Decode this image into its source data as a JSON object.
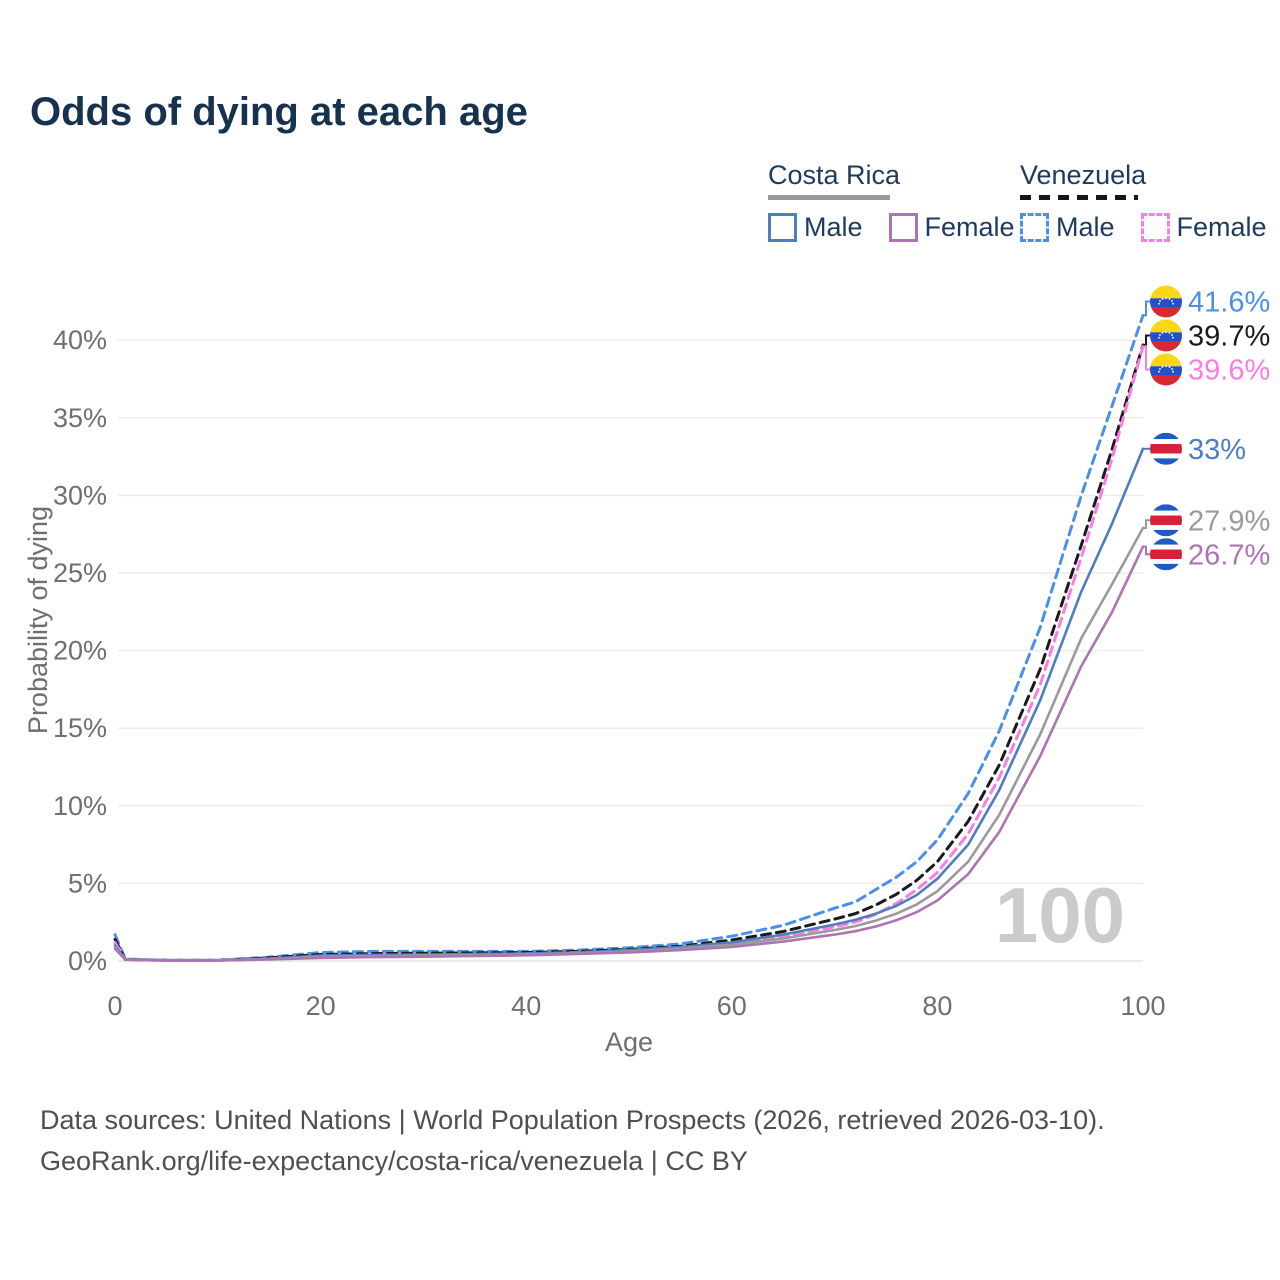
{
  "title": "Odds of dying at each age",
  "legend": {
    "groups": [
      {
        "country": "Costa Rica",
        "line_style": "solid",
        "underline_color": "#9a9a9a",
        "items": [
          {
            "label": "Male",
            "color": "#4d7ebf",
            "dashed": false
          },
          {
            "label": "Female",
            "color": "#ac74b3",
            "dashed": false
          }
        ]
      },
      {
        "country": "Venezuela",
        "line_style": "dashed",
        "underline_color": "#161616",
        "items": [
          {
            "label": "Male",
            "color": "#4a90e8",
            "dashed": true
          },
          {
            "label": "Female",
            "color": "#fb7ce4",
            "dashed": true
          }
        ]
      }
    ]
  },
  "chart_data": {
    "type": "line",
    "title": "Odds of dying at each age",
    "xlabel": "Age",
    "ylabel": "Probability of dying",
    "xlim": [
      0,
      100
    ],
    "ylim": [
      0,
      43
    ],
    "grid": "horizontal",
    "legend_position": "top-right",
    "watermark": "100",
    "x_ticks": [
      {
        "v": 0,
        "label": "0"
      },
      {
        "v": 20,
        "label": "20"
      },
      {
        "v": 40,
        "label": "40"
      },
      {
        "v": 60,
        "label": "60"
      },
      {
        "v": 80,
        "label": "80"
      },
      {
        "v": 100,
        "label": "100"
      }
    ],
    "y_ticks": [
      {
        "v": 0,
        "label": "0%"
      },
      {
        "v": 5,
        "label": "5%"
      },
      {
        "v": 10,
        "label": "10%"
      },
      {
        "v": 15,
        "label": "15%"
      },
      {
        "v": 20,
        "label": "20%"
      },
      {
        "v": 25,
        "label": "25%"
      },
      {
        "v": 30,
        "label": "30%"
      },
      {
        "v": 35,
        "label": "35%"
      },
      {
        "v": 40,
        "label": "40%"
      }
    ],
    "x": [
      0,
      1,
      5,
      10,
      15,
      20,
      25,
      30,
      35,
      40,
      45,
      50,
      55,
      60,
      65,
      70,
      72,
      74,
      76,
      78,
      80,
      83,
      86,
      90,
      94,
      97,
      100
    ],
    "series": [
      {
        "name": "Venezuela Male",
        "country": "venezuela",
        "color": "#4a90e8",
        "dashed": true,
        "end_label": "41.6%",
        "values": [
          1.7,
          0.12,
          0.05,
          0.05,
          0.25,
          0.55,
          0.62,
          0.62,
          0.62,
          0.62,
          0.7,
          0.85,
          1.1,
          1.6,
          2.3,
          3.4,
          3.8,
          4.6,
          5.4,
          6.4,
          7.8,
          10.8,
          14.8,
          21.5,
          30.0,
          35.8,
          41.6
        ]
      },
      {
        "name": "Venezuela Total",
        "country": "venezuela",
        "color": "#1a1a1a",
        "dashed": true,
        "end_label": "39.7%",
        "values": [
          1.4,
          0.1,
          0.04,
          0.04,
          0.2,
          0.42,
          0.48,
          0.5,
          0.52,
          0.55,
          0.62,
          0.75,
          0.95,
          1.35,
          1.9,
          2.7,
          3.05,
          3.6,
          4.3,
          5.2,
          6.4,
          9.0,
          12.6,
          18.8,
          26.8,
          33.0,
          39.7
        ]
      },
      {
        "name": "Venezuela Female",
        "country": "venezuela",
        "color": "#fb7ce4",
        "dashed": true,
        "end_label": "39.6%",
        "values": [
          1.2,
          0.09,
          0.04,
          0.04,
          0.14,
          0.28,
          0.33,
          0.37,
          0.42,
          0.47,
          0.55,
          0.68,
          0.85,
          1.15,
          1.6,
          2.2,
          2.5,
          3.0,
          3.7,
          4.6,
          5.7,
          8.2,
          11.8,
          17.8,
          26.0,
          32.4,
          39.6
        ]
      },
      {
        "name": "Costa Rica Male",
        "country": "costa-rica",
        "color": "#4d7ebf",
        "dashed": false,
        "end_label": "33%",
        "values": [
          1.0,
          0.1,
          0.04,
          0.04,
          0.15,
          0.35,
          0.4,
          0.42,
          0.45,
          0.48,
          0.55,
          0.7,
          0.9,
          1.2,
          1.7,
          2.35,
          2.65,
          3.05,
          3.55,
          4.25,
          5.3,
          7.5,
          11.0,
          16.8,
          23.8,
          28.2,
          33.0
        ]
      },
      {
        "name": "Costa Rica Total",
        "country": "costa-rica",
        "color": "#9a9a9a",
        "dashed": false,
        "end_label": "27.9%",
        "values": [
          0.9,
          0.09,
          0.04,
          0.04,
          0.12,
          0.28,
          0.32,
          0.35,
          0.38,
          0.42,
          0.5,
          0.62,
          0.8,
          1.05,
          1.45,
          2.0,
          2.25,
          2.6,
          3.05,
          3.65,
          4.5,
          6.4,
          9.4,
          14.6,
          20.8,
          24.3,
          27.9
        ]
      },
      {
        "name": "Costa Rica Female",
        "country": "costa-rica",
        "color": "#ac74b3",
        "dashed": false,
        "end_label": "26.7%",
        "values": [
          0.8,
          0.08,
          0.03,
          0.03,
          0.1,
          0.2,
          0.25,
          0.28,
          0.32,
          0.37,
          0.45,
          0.55,
          0.7,
          0.9,
          1.25,
          1.7,
          1.92,
          2.22,
          2.62,
          3.15,
          3.9,
          5.6,
          8.3,
          13.2,
          19.0,
          22.5,
          26.7
        ]
      }
    ],
    "flag_colors": {
      "venezuela": {
        "yellow": "#f9d616",
        "blue": "#2250c9",
        "red": "#d62934"
      },
      "costa_rica": {
        "blue": "#1f5bc8",
        "red": "#d8203a",
        "white": "#ffffff"
      }
    }
  },
  "footer": {
    "line1": "Data sources: United Nations | World Population Prospects (2026, retrieved 2026-03-10).",
    "line2": "GeoRank.org/life-expectancy/costa-rica/venezuela | CC BY"
  }
}
